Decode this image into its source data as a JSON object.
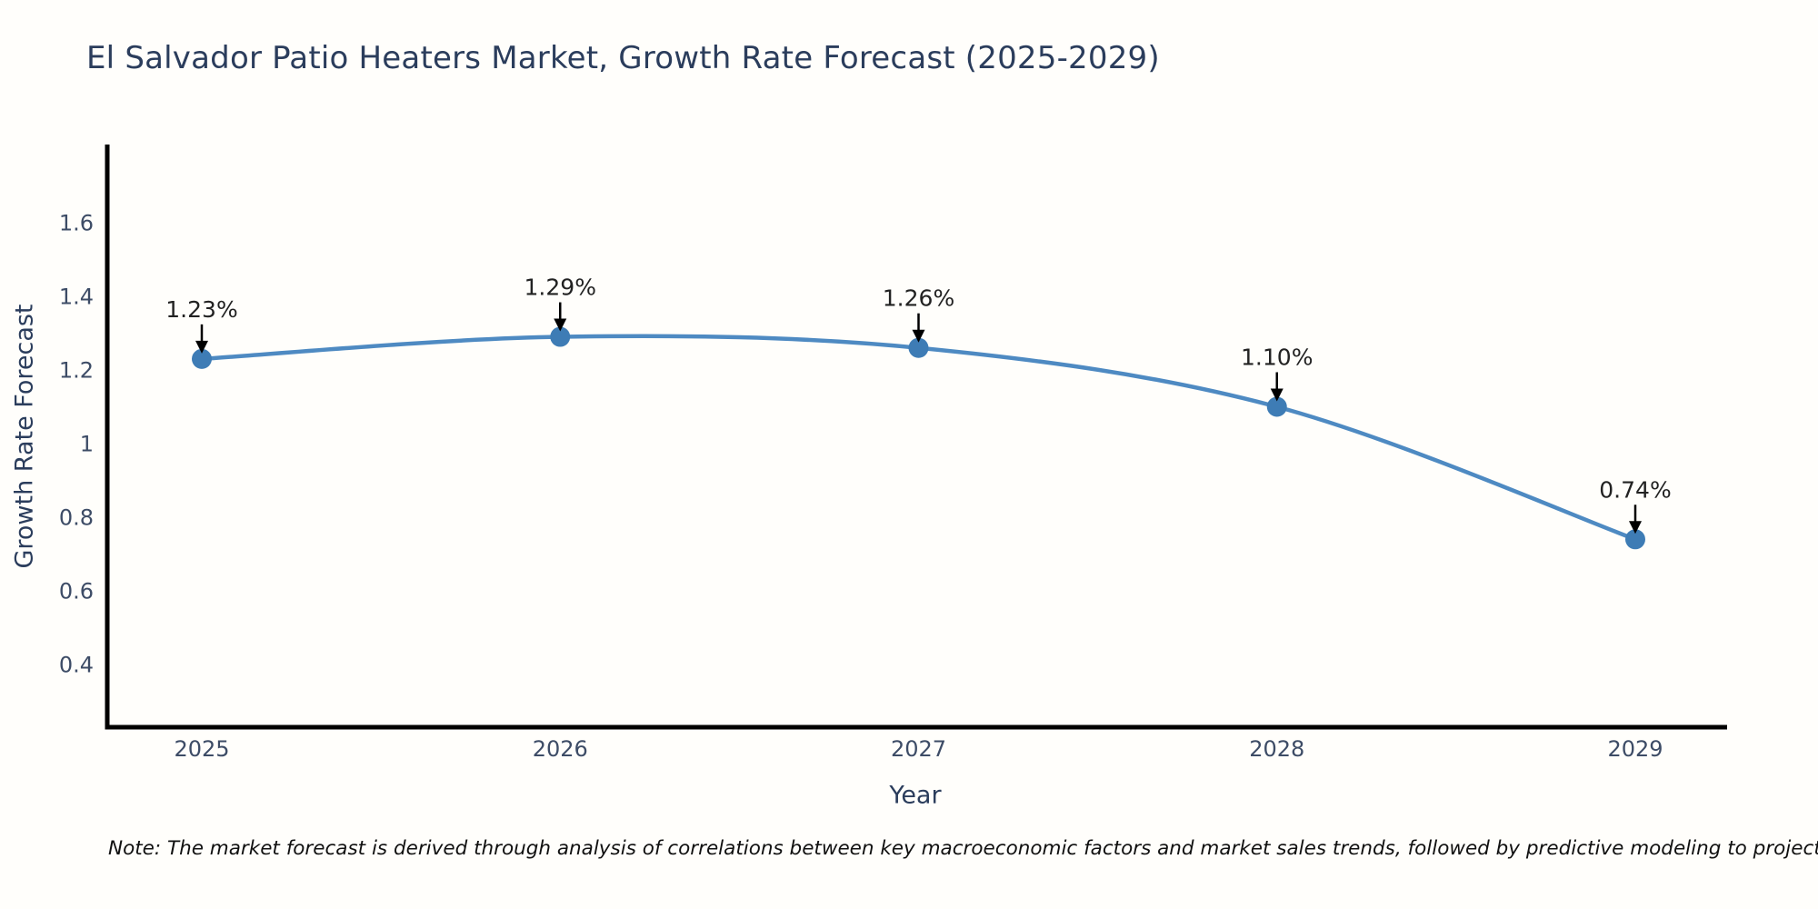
{
  "title": "El Salvador Patio Heaters Market, Growth Rate Forecast (2025-2029)",
  "note": "Note: The market forecast is derived through analysis of correlations between key macroeconomic factors and market sales trends, followed by predictive modeling to project future sales",
  "chart_data": {
    "type": "line",
    "title": "El Salvador Patio Heaters Market, Growth Rate Forecast (2025-2029)",
    "xlabel": "Year",
    "ylabel": "Growth Rate Forecast",
    "x": [
      2025,
      2026,
      2027,
      2028,
      2029
    ],
    "values": [
      1.23,
      1.29,
      1.26,
      1.1,
      0.74
    ],
    "point_labels": [
      "1.23%",
      "1.29%",
      "1.26%",
      "1.10%",
      "0.74%"
    ],
    "xtick_labels": [
      "2025",
      "2026",
      "2027",
      "2028",
      "2029"
    ],
    "ytick_values": [
      1.6,
      1.4,
      1.2,
      1.0,
      0.8,
      0.6,
      0.4
    ],
    "ytick_labels": [
      "1.6",
      "1.4",
      "1.2",
      "1",
      "0.8",
      "0.6",
      "0.4"
    ],
    "ylim": [
      0.22,
      1.82
    ],
    "xlim": [
      2024.74,
      2029.26
    ],
    "grid": false,
    "legend": "none",
    "colors": {
      "line": "#4e8ac2",
      "marker": "#3e7cb5",
      "axis": "#000000",
      "tick_label": "#3d4c66",
      "annotation_text": "#222222",
      "annotation_arrow": "#000000",
      "title_text": "#2b3d5c",
      "background": "#fffefb"
    }
  }
}
